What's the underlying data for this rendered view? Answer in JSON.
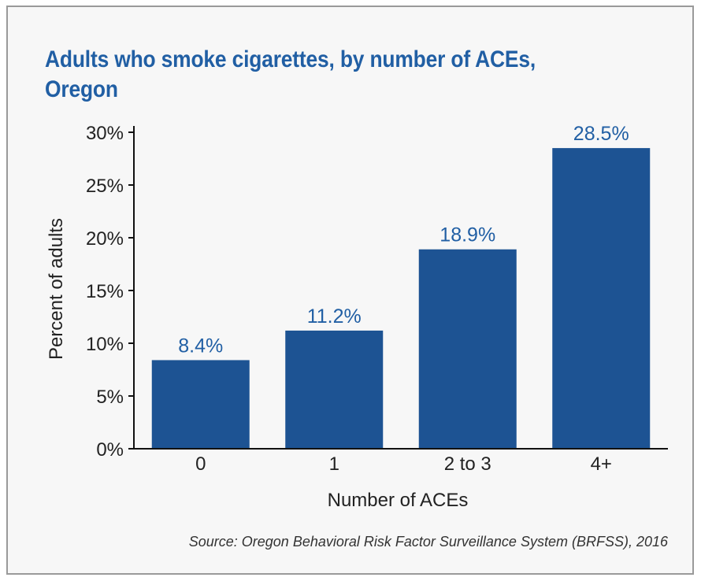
{
  "chart_data": {
    "type": "bar",
    "title": "Adults who smoke cigarettes, by number of ACEs, Oregon",
    "xlabel": "Number of ACEs",
    "ylabel": "Percent of adults",
    "categories": [
      "0",
      "1",
      "2 to 3",
      "4+"
    ],
    "values": [
      8.4,
      11.2,
      18.9,
      28.5
    ],
    "value_labels": [
      "8.4%",
      "11.2%",
      "18.9%",
      "28.5%"
    ],
    "ylim": [
      0,
      30
    ],
    "yticks": [
      0,
      5,
      10,
      15,
      20,
      25,
      30
    ],
    "ytick_labels": [
      "0%",
      "5%",
      "10%",
      "15%",
      "20%",
      "25%",
      "30%"
    ],
    "grid": false,
    "legend": "none",
    "source": "Source: Oregon Behavioral Risk Factor Surveillance System (BRFSS), 2016"
  },
  "colors": {
    "bar": "#1d5393",
    "title": "#215fa4",
    "value_label": "#215fa4",
    "text": "#222222"
  }
}
